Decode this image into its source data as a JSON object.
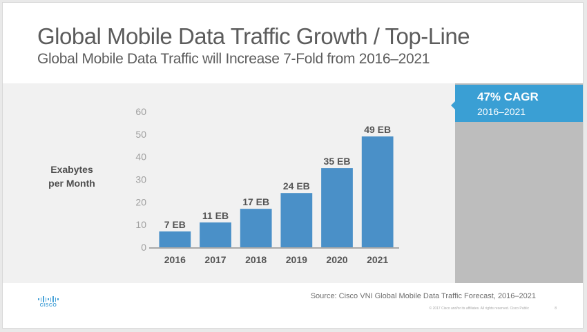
{
  "slide": {
    "title": "Global Mobile Data Traffic Growth / Top-Line",
    "subtitle": "Global Mobile Data Traffic will Increase 7-Fold from 2016–2021"
  },
  "callout": {
    "value": "47% CAGR",
    "range": "2016–2021",
    "color": "#3a9fd4"
  },
  "footer": {
    "source": "Source: Cisco VNI Global Mobile Data Traffic Forecast, 2016–2021",
    "copyright": "© 2017 Cisco and/or its affiliates. All rights reserved.   Cisco Public",
    "page_number": "8",
    "logo_text": "CISCO",
    "logo_icon": "cisco-bridge-logo-icon"
  },
  "chart_data": {
    "type": "bar",
    "title": "",
    "xlabel": "",
    "ylabel": "Exabytes per Month",
    "ylabel_lines": [
      "Exabytes",
      "per Month"
    ],
    "categories": [
      "2016",
      "2017",
      "2018",
      "2019",
      "2020",
      "2021"
    ],
    "values": [
      7,
      11,
      17,
      24,
      35,
      49
    ],
    "data_labels": [
      "7 EB",
      "11 EB",
      "17 EB",
      "24 EB",
      "35 EB",
      "49 EB"
    ],
    "ylim": [
      0,
      60
    ],
    "yticks": [
      0,
      10,
      20,
      30,
      40,
      50,
      60
    ],
    "grid": false,
    "legend": "none",
    "bar_color": "#4a90c8"
  }
}
